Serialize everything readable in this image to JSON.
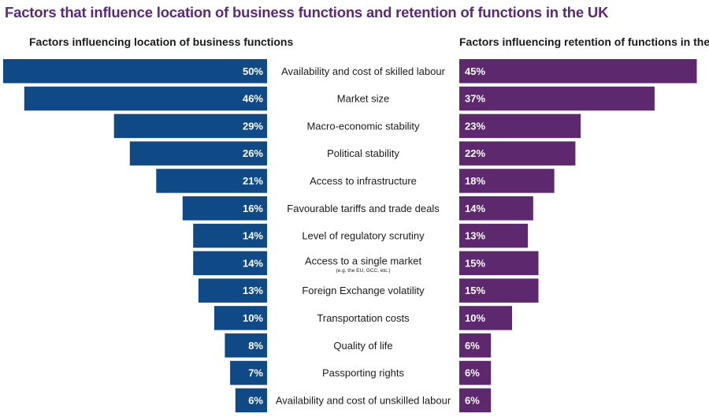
{
  "chart_data": {
    "type": "bar",
    "title": "Factors that influence location of business functions and retention of functions in the UK",
    "categories": [
      "Availability and cost of skilled labour",
      "Market size",
      "Macro-economic stability",
      "Political stability",
      "Access to infrastructure",
      "Favourable tariffs and trade deals",
      "Level of regulatory scrutiny",
      "Access to a single market",
      "Foreign Exchange volatility",
      "Transportation costs",
      "Quality of life",
      "Passporting rights",
      "Availability and cost of unskilled labour"
    ],
    "category_notes": [
      "",
      "",
      "",
      "",
      "",
      "",
      "",
      "(e.g. the EU, GCC, etc.)",
      "",
      "",
      "",
      "",
      ""
    ],
    "series": [
      {
        "name": "Factors influencing location of business functions",
        "color": "#0f4a87",
        "values": [
          50,
          46,
          29,
          26,
          21,
          16,
          14,
          14,
          13,
          10,
          8,
          7,
          6
        ],
        "labels": [
          "50%",
          "46%",
          "29%",
          "26%",
          "21%",
          "16%",
          "14%",
          "14%",
          "13%",
          "10%",
          "8%",
          "7%",
          "6%"
        ]
      },
      {
        "name": "Factors influencing retention of functions in the UK",
        "color": "#5e286f",
        "values": [
          45,
          37,
          23,
          22,
          18,
          14,
          13,
          15,
          15,
          10,
          6,
          6,
          6
        ],
        "labels": [
          "45%",
          "37%",
          "23%",
          "22%",
          "18%",
          "14%",
          "13%",
          "15%",
          "15%",
          "10%",
          "6%",
          "6%",
          "6%"
        ]
      }
    ],
    "unit": "%"
  }
}
